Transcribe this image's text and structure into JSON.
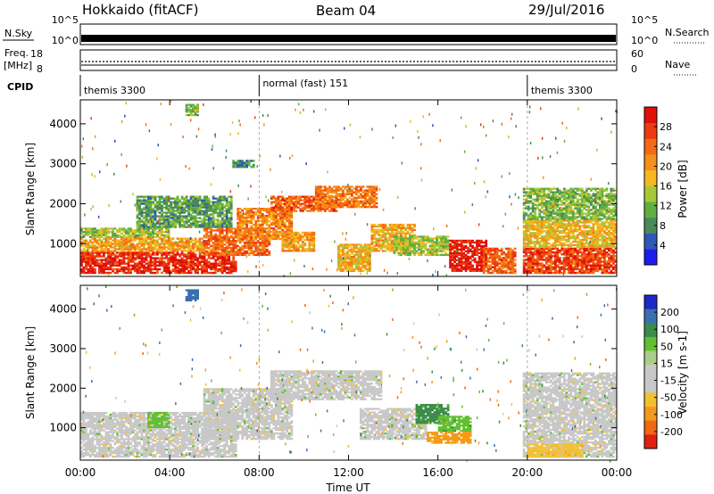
{
  "header": {
    "station": "Hokkaido (fitACF)",
    "beam": "Beam 04",
    "date": "29/Jul/2016"
  },
  "noise_panel": {
    "left_label": "N.Sky",
    "right_label": "N.Search",
    "left_ticks": [
      "10^5",
      "10^0"
    ],
    "right_ticks": [
      "10^5",
      "10^0"
    ]
  },
  "freq_panel": {
    "left_label_line1": "Freq.",
    "left_label_line2": "[MHz]",
    "right_label": "Nave",
    "left_ticks": [
      "18",
      "8"
    ],
    "right_ticks": [
      "60",
      "0"
    ]
  },
  "cpid_panel": {
    "label": "CPID",
    "segments": [
      {
        "start_hour": 0,
        "end_hour": 8,
        "label": "themis 3300"
      },
      {
        "start_hour": 8,
        "end_hour": 20,
        "label": "normal (fast) 151"
      },
      {
        "start_hour": 20,
        "end_hour": 24,
        "label": "themis 3300"
      }
    ]
  },
  "x_axis": {
    "label": "Time UT",
    "ticks": [
      "00:00",
      "04:00",
      "08:00",
      "12:00",
      "16:00",
      "20:00",
      "00:00"
    ],
    "tick_hours": [
      0,
      4,
      8,
      12,
      16,
      20,
      24
    ],
    "range_hours": [
      0,
      24
    ]
  },
  "chart_data": [
    {
      "type": "heatmap",
      "panel": "power",
      "ylabel": "Slant Range [km]",
      "ylim_km": [
        180,
        4600
      ],
      "yticks": [
        1000,
        2000,
        3000,
        4000
      ],
      "xlim_hours": [
        0,
        24
      ],
      "colorbar": {
        "label": "Power [dB]",
        "ticks": [
          "4",
          "8",
          "12",
          "16",
          "20",
          "24",
          "28"
        ],
        "tick_values": [
          4,
          8,
          12,
          16,
          20,
          24,
          28
        ],
        "range": [
          0,
          32
        ],
        "colors": [
          "#1c1cf0",
          "#2f58b8",
          "#4a8a5a",
          "#5fb040",
          "#a8c838",
          "#f5b91f",
          "#f59018",
          "#f46a12",
          "#ee3a10",
          "#e01008"
        ]
      },
      "regions": [
        {
          "t": [
            0,
            7.0
          ],
          "r": [
            250,
            800
          ],
          "value": 29
        },
        {
          "t": [
            0,
            5.5
          ],
          "r": [
            800,
            1150
          ],
          "value": 20
        },
        {
          "t": [
            0,
            4.0
          ],
          "r": [
            1150,
            1400
          ],
          "value": 13
        },
        {
          "t": [
            2.5,
            6.8
          ],
          "r": [
            1400,
            2200
          ],
          "value": 10
        },
        {
          "t": [
            5.5,
            8.5
          ],
          "r": [
            700,
            1400
          ],
          "value": 24
        },
        {
          "t": [
            7.0,
            9.5
          ],
          "r": [
            1100,
            1900
          ],
          "value": 22
        },
        {
          "t": [
            8.5,
            11.5
          ],
          "r": [
            1800,
            2200
          ],
          "value": 25
        },
        {
          "t": [
            10.5,
            13.3
          ],
          "r": [
            1900,
            2450
          ],
          "value": 23
        },
        {
          "t": [
            9.0,
            10.5
          ],
          "r": [
            800,
            1300
          ],
          "value": 20
        },
        {
          "t": [
            11.5,
            13.0
          ],
          "r": [
            300,
            1000
          ],
          "value": 18
        },
        {
          "t": [
            13.0,
            15.0
          ],
          "r": [
            800,
            1500
          ],
          "value": 19
        },
        {
          "t": [
            14.0,
            16.5
          ],
          "r": [
            700,
            1200
          ],
          "value": 14
        },
        {
          "t": [
            16.5,
            18.2
          ],
          "r": [
            300,
            1100
          ],
          "value": 30
        },
        {
          "t": [
            18.0,
            19.5
          ],
          "r": [
            250,
            900
          ],
          "value": 25
        },
        {
          "t": [
            19.8,
            24.0
          ],
          "r": [
            250,
            900
          ],
          "value": 27
        },
        {
          "t": [
            19.8,
            24.0
          ],
          "r": [
            900,
            1600
          ],
          "value": 18
        },
        {
          "t": [
            19.8,
            24.0
          ],
          "r": [
            1600,
            2400
          ],
          "value": 12
        },
        {
          "t": [
            6.8,
            7.8
          ],
          "r": [
            2900,
            3100
          ],
          "value": 8
        },
        {
          "t": [
            4.7,
            5.3
          ],
          "r": [
            4200,
            4500
          ],
          "value": 12
        }
      ]
    },
    {
      "type": "heatmap",
      "panel": "velocity",
      "ylabel": "Slant Range [km]",
      "ylim_km": [
        180,
        4600
      ],
      "yticks": [
        1000,
        2000,
        3000,
        4000
      ],
      "xlim_hours": [
        0,
        24
      ],
      "colorbar": {
        "label": "Velocity [m s-1]",
        "ticks": [
          "200",
          "100",
          "50",
          "15",
          "-15",
          "-50",
          "-100",
          "-200"
        ],
        "tick_values": [
          200,
          100,
          50,
          15,
          -15,
          -50,
          -100,
          -200
        ],
        "colors": [
          "#1c28c8",
          "#3a6fb0",
          "#3a8c4a",
          "#62c030",
          "#a9ce8a",
          "#c8c8c8",
          "#c8c8c8",
          "#f5c030",
          "#f59a18",
          "#f06814",
          "#e02010"
        ]
      },
      "regions": [
        {
          "t": [
            0,
            7.0
          ],
          "r": [
            250,
            1400
          ],
          "value": 0
        },
        {
          "t": [
            5.5,
            9.5
          ],
          "r": [
            700,
            2000
          ],
          "value": 0
        },
        {
          "t": [
            8.5,
            13.5
          ],
          "r": [
            1700,
            2450
          ],
          "value": 0
        },
        {
          "t": [
            12.5,
            15.5
          ],
          "r": [
            700,
            1500
          ],
          "value": 0
        },
        {
          "t": [
            15.0,
            16.5
          ],
          "r": [
            1100,
            1600
          ],
          "value": 60
        },
        {
          "t": [
            16.0,
            17.5
          ],
          "r": [
            900,
            1300
          ],
          "value": 40
        },
        {
          "t": [
            15.5,
            17.5
          ],
          "r": [
            600,
            900
          ],
          "value": -60
        },
        {
          "t": [
            19.8,
            24.0
          ],
          "r": [
            250,
            2400
          ],
          "value": 0
        },
        {
          "t": [
            20.0,
            22.5
          ],
          "r": [
            250,
            600
          ],
          "value": -40
        },
        {
          "t": [
            3.0,
            4.0
          ],
          "r": [
            1000,
            1400
          ],
          "value": 20
        },
        {
          "t": [
            4.7,
            5.3
          ],
          "r": [
            4200,
            4500
          ],
          "value": 150
        }
      ]
    }
  ]
}
